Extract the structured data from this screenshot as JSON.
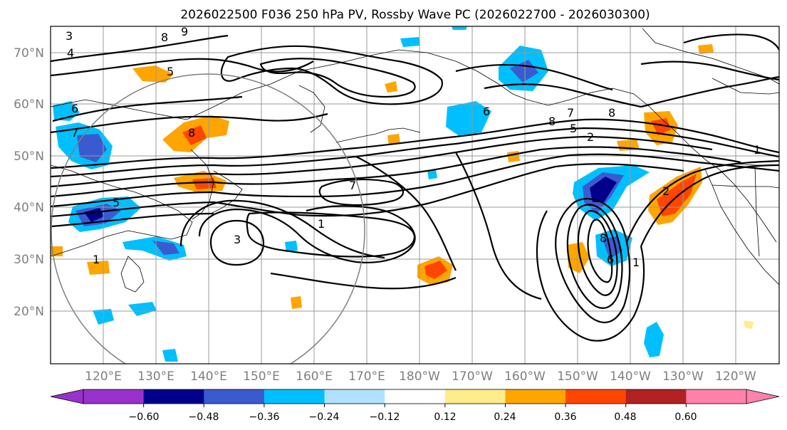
{
  "title": "2026022500 F036 250 hPa PV, Rossby Wave PC (2026022700 - 2026030300)",
  "lat_labels": [
    "70°N",
    "60°N",
    "50°N",
    "40°N",
    "30°N",
    "20°N"
  ],
  "lon_labels": [
    "120°E",
    "130°E",
    "140°E",
    "150°E",
    "160°E",
    "170°E",
    "180°W",
    "170°W",
    "160°W",
    "150°W",
    "140°W",
    "130°W",
    "120°W"
  ],
  "colorbar": {
    "colors": [
      "#9932CC",
      "#00008B",
      "#3A5BD0",
      "#00BFFF",
      "#B0E2FF",
      "#FFFFFF",
      "#FFEC8B",
      "#FFA500",
      "#FF4500",
      "#B22222",
      "#FF82AB"
    ],
    "tick_labels": [
      "−0.60",
      "−0.48",
      "−0.36",
      "−0.24",
      "−0.12",
      "0.12",
      "0.24",
      "0.36",
      "0.48",
      "0.60"
    ]
  },
  "contour_labels": [
    "3",
    "8",
    "9",
    "4",
    "5",
    "6",
    "7",
    "8",
    "1",
    "7",
    "6",
    "8",
    "7",
    "8",
    "5",
    "2",
    "1",
    "1",
    "3",
    "8",
    "5",
    "6",
    "1",
    "2"
  ]
}
